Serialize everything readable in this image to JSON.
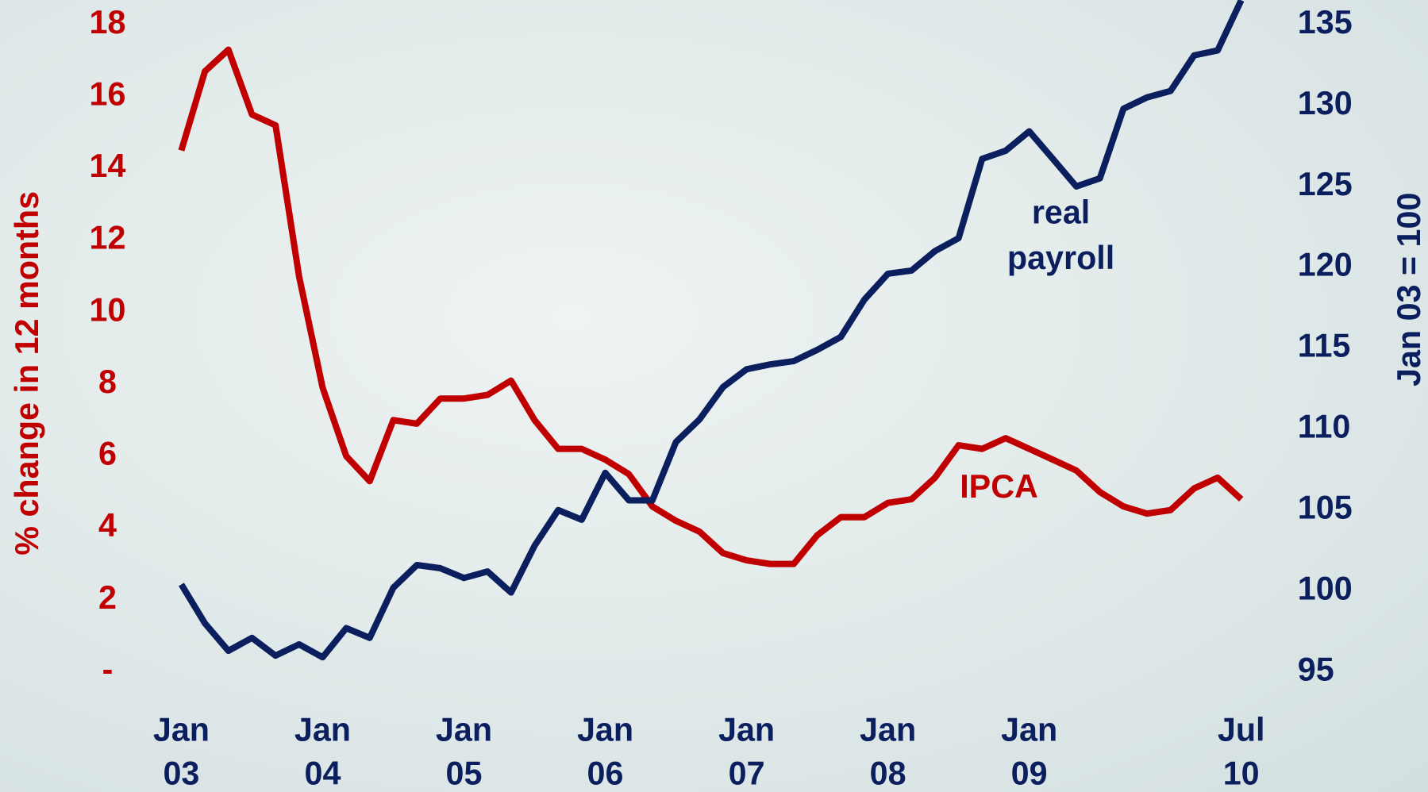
{
  "chart_data": {
    "type": "line",
    "x": [
      0,
      2,
      4,
      6,
      8,
      10,
      12,
      14,
      16,
      18,
      20,
      22,
      24,
      26,
      28,
      30,
      32,
      34,
      36,
      38,
      40,
      42,
      44,
      46,
      48,
      50,
      52,
      54,
      56,
      58,
      60,
      62,
      64,
      66,
      68,
      70,
      72,
      74,
      76,
      78,
      80,
      82,
      84,
      86,
      88,
      90
    ],
    "xlim": [
      0,
      90
    ],
    "xticks": [
      {
        "value": 0,
        "label": "Jan 03"
      },
      {
        "value": 12,
        "label": "Jan 04"
      },
      {
        "value": 24,
        "label": "Jan 05"
      },
      {
        "value": 36,
        "label": "Jan 06"
      },
      {
        "value": 48,
        "label": "Jan 07"
      },
      {
        "value": 60,
        "label": "Jan 08"
      },
      {
        "value": 72,
        "label": "Jan 09"
      },
      {
        "value": 90,
        "label": "Jul 10"
      }
    ],
    "ylabel": "% change in 12 months",
    "y2label": "Jan 03 = 100",
    "ylim": [
      0,
      18
    ],
    "yticks": [
      {
        "value": 0,
        "label": "-"
      },
      2,
      4,
      6,
      8,
      10,
      12,
      14,
      16,
      18
    ],
    "y2lim": [
      95,
      135
    ],
    "y2ticks": [
      95,
      100,
      105,
      110,
      115,
      120,
      125,
      130,
      135
    ],
    "series": [
      {
        "name": "IPCA",
        "color": "#c00000",
        "axis": "y",
        "values": [
          14.5,
          16.7,
          17.3,
          15.5,
          15.2,
          11,
          7.9,
          6.0,
          5.3,
          7.0,
          6.9,
          7.6,
          7.6,
          7.7,
          8.1,
          7.0,
          6.2,
          6.2,
          5.9,
          5.5,
          4.6,
          4.2,
          3.9,
          3.3,
          3.1,
          3.0,
          3.0,
          3.8,
          4.3,
          4.3,
          4.7,
          4.8,
          5.4,
          6.3,
          6.2,
          6.5,
          6.2,
          5.9,
          5.6,
          5.0,
          4.6,
          4.4,
          4.5,
          5.1,
          5.4,
          4.8
        ]
      },
      {
        "name": "real payroll",
        "color": "#0b1f5e",
        "axis": "y2",
        "values": [
          100.4,
          98.0,
          96.3,
          97.1,
          96.0,
          96.7,
          95.9,
          97.7,
          97.1,
          100.2,
          101.6,
          101.4,
          100.8,
          101.2,
          99.9,
          102.8,
          105.0,
          104.4,
          107.3,
          105.6,
          105.6,
          109.2,
          110.6,
          112.6,
          113.7,
          114.0,
          114.2,
          114.9,
          115.7,
          118.0,
          119.6,
          119.8,
          121.0,
          121.8,
          126.7,
          127.2,
          128.4,
          126.7,
          125.0,
          125.5,
          129.8,
          130.5,
          130.9,
          133.1,
          133.4,
          136.5
        ]
      }
    ]
  }
}
